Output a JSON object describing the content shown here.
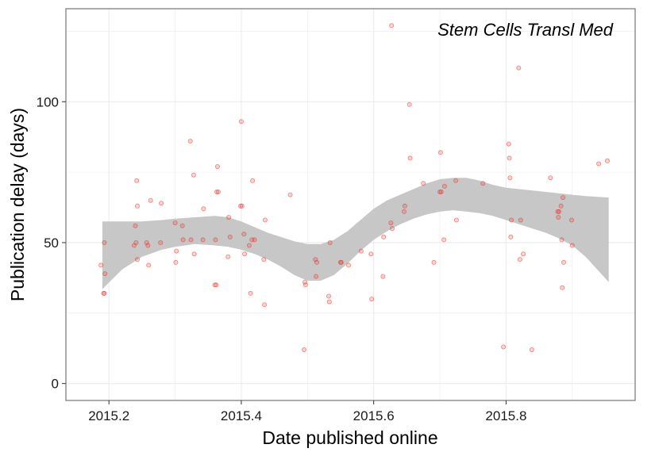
{
  "chart_data": {
    "type": "scatter",
    "title": "",
    "annotation": "Stem Cells Transl Med",
    "xlabel": "Date published online",
    "ylabel": "Publication delay (days)",
    "xlim": [
      2015.135,
      2015.995
    ],
    "ylim": [
      -6,
      133
    ],
    "x_ticks": [
      2015.2,
      2015.4,
      2015.6,
      2015.8
    ],
    "x_tick_labels": [
      "2015.2",
      "2015.4",
      "2015.6",
      "2015.8"
    ],
    "y_ticks": [
      0,
      50,
      100
    ],
    "y_tick_labels": [
      "0",
      "50",
      "100"
    ],
    "grid": true,
    "legend": "none",
    "colors": {
      "points": "#e8302a",
      "band": "#c7c7c7",
      "panel_border": "#7f7f7f",
      "grid": "#ebebeb"
    },
    "series": [
      {
        "points": [
          [
            2015.188,
            42
          ],
          [
            2015.192,
            32
          ],
          [
            2015.193,
            32
          ],
          [
            2015.193,
            50
          ],
          [
            2015.194,
            39
          ],
          [
            2015.238,
            49
          ],
          [
            2015.24,
            56
          ],
          [
            2015.241,
            50
          ],
          [
            2015.242,
            72
          ],
          [
            2015.243,
            44
          ],
          [
            2015.243,
            63
          ],
          [
            2015.257,
            50
          ],
          [
            2015.259,
            49
          ],
          [
            2015.26,
            42
          ],
          [
            2015.263,
            65
          ],
          [
            2015.278,
            50
          ],
          [
            2015.279,
            64
          ],
          [
            2015.3,
            57
          ],
          [
            2015.301,
            43
          ],
          [
            2015.302,
            47
          ],
          [
            2015.311,
            56
          ],
          [
            2015.312,
            51
          ],
          [
            2015.323,
            86
          ],
          [
            2015.324,
            51
          ],
          [
            2015.328,
            74
          ],
          [
            2015.329,
            46
          ],
          [
            2015.342,
            51
          ],
          [
            2015.343,
            62
          ],
          [
            2015.36,
            35
          ],
          [
            2015.361,
            51
          ],
          [
            2015.362,
            35
          ],
          [
            2015.363,
            68
          ],
          [
            2015.364,
            77
          ],
          [
            2015.365,
            68
          ],
          [
            2015.38,
            45
          ],
          [
            2015.381,
            59
          ],
          [
            2015.383,
            52
          ],
          [
            2015.399,
            63
          ],
          [
            2015.4,
            93
          ],
          [
            2015.401,
            63
          ],
          [
            2015.404,
            53
          ],
          [
            2015.405,
            46
          ],
          [
            2015.412,
            49
          ],
          [
            2015.414,
            32
          ],
          [
            2015.416,
            51
          ],
          [
            2015.417,
            72
          ],
          [
            2015.42,
            51
          ],
          [
            2015.434,
            44
          ],
          [
            2015.435,
            28
          ],
          [
            2015.436,
            58
          ],
          [
            2015.474,
            67
          ],
          [
            2015.495,
            12
          ],
          [
            2015.496,
            36
          ],
          [
            2015.497,
            35
          ],
          [
            2015.512,
            44
          ],
          [
            2015.513,
            38
          ],
          [
            2015.514,
            43
          ],
          [
            2015.532,
            31
          ],
          [
            2015.533,
            29
          ],
          [
            2015.534,
            50
          ],
          [
            2015.55,
            43
          ],
          [
            2015.551,
            43
          ],
          [
            2015.562,
            42
          ],
          [
            2015.581,
            47
          ],
          [
            2015.596,
            46
          ],
          [
            2015.597,
            30
          ],
          [
            2015.614,
            38
          ],
          [
            2015.615,
            52
          ],
          [
            2015.626,
            57
          ],
          [
            2015.627,
            127
          ],
          [
            2015.628,
            55
          ],
          [
            2015.646,
            61
          ],
          [
            2015.647,
            63
          ],
          [
            2015.654,
            99
          ],
          [
            2015.655,
            80
          ],
          [
            2015.675,
            71
          ],
          [
            2015.691,
            43
          ],
          [
            2015.7,
            68
          ],
          [
            2015.701,
            82
          ],
          [
            2015.702,
            68
          ],
          [
            2015.706,
            51
          ],
          [
            2015.707,
            70
          ],
          [
            2015.724,
            72
          ],
          [
            2015.725,
            58
          ],
          [
            2015.765,
            71
          ],
          [
            2015.796,
            13
          ],
          [
            2015.804,
            85
          ],
          [
            2015.805,
            80
          ],
          [
            2015.806,
            73
          ],
          [
            2015.807,
            52
          ],
          [
            2015.808,
            58
          ],
          [
            2015.819,
            112
          ],
          [
            2015.821,
            44
          ],
          [
            2015.822,
            58
          ],
          [
            2015.826,
            46
          ],
          [
            2015.839,
            12
          ],
          [
            2015.867,
            73
          ],
          [
            2015.878,
            61
          ],
          [
            2015.879,
            59
          ],
          [
            2015.88,
            61
          ],
          [
            2015.883,
            63
          ],
          [
            2015.884,
            51
          ],
          [
            2015.885,
            34
          ],
          [
            2015.886,
            66
          ],
          [
            2015.887,
            43
          ],
          [
            2015.899,
            58
          ],
          [
            2015.9,
            49
          ],
          [
            2015.94,
            78
          ],
          [
            2015.953,
            79
          ]
        ]
      }
    ],
    "smooth_band": {
      "x": [
        2015.19,
        2015.22,
        2015.25,
        2015.28,
        2015.3,
        2015.33,
        2015.36,
        2015.38,
        2015.4,
        2015.42,
        2015.44,
        2015.46,
        2015.48,
        2015.5,
        2015.52,
        2015.54,
        2015.56,
        2015.58,
        2015.6,
        2015.62,
        2015.64,
        2015.66,
        2015.68,
        2015.7,
        2015.72,
        2015.74,
        2015.76,
        2015.78,
        2015.8,
        2015.82,
        2015.84,
        2015.86,
        2015.88,
        2015.9,
        2015.92,
        2015.955
      ],
      "lower": [
        33.5,
        40.5,
        45,
        47.5,
        48.5,
        49.5,
        49,
        48.5,
        47.5,
        46,
        44,
        41.5,
        38.5,
        36.5,
        36.5,
        38.5,
        42.5,
        47,
        51,
        54,
        56.5,
        58.5,
        60,
        61,
        61.5,
        61,
        60.5,
        59.5,
        58,
        56.5,
        55,
        53.5,
        51.5,
        49,
        45,
        36
      ],
      "upper": [
        57.5,
        57.5,
        57.5,
        58,
        58.5,
        59,
        59.5,
        59,
        57.5,
        55.5,
        53.5,
        52,
        50.5,
        49.5,
        49.5,
        51,
        54,
        58,
        62,
        65,
        67,
        69,
        71,
        72.5,
        73,
        73,
        72,
        70.5,
        69.5,
        69,
        68.5,
        68,
        67.5,
        67,
        66.5,
        66
      ]
    }
  }
}
